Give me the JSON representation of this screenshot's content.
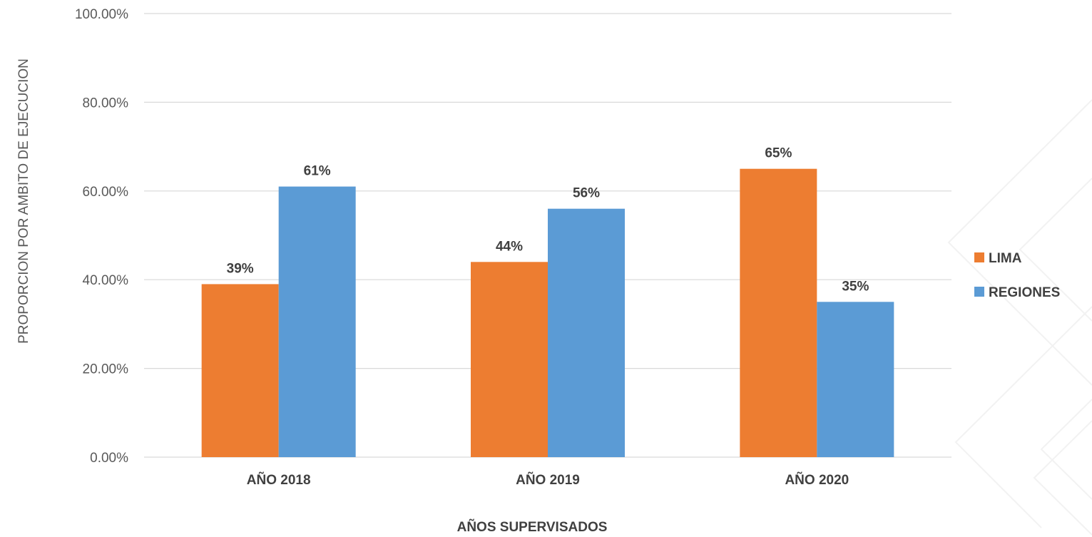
{
  "chart_data": {
    "type": "bar",
    "categories": [
      "AÑO 2018",
      "AÑO 2019",
      "AÑO 2020"
    ],
    "series": [
      {
        "name": "LIMA",
        "values": [
          0.39,
          0.44,
          0.65
        ],
        "labels": [
          "39%",
          "44%",
          "65%"
        ],
        "color": "#ED7D31"
      },
      {
        "name": "REGIONES",
        "values": [
          0.61,
          0.56,
          0.35
        ],
        "labels": [
          "61%",
          "56%",
          "35%"
        ],
        "color": "#5B9BD5"
      }
    ],
    "yticks": [
      0,
      0.2,
      0.4,
      0.6,
      0.8,
      1.0
    ],
    "ytick_labels": [
      "0.00%",
      "20.00%",
      "40.00%",
      "60.00%",
      "80.00%",
      "100.00%"
    ],
    "ylim": [
      0,
      1.0
    ],
    "xlabel": "AÑOS SUPERVISADOS",
    "ylabel": "PROPORCION POR AMBITO DE EJECUCION",
    "title": "",
    "grid": true,
    "legend_position": "right",
    "gridline_color": "#D9D9D9"
  }
}
